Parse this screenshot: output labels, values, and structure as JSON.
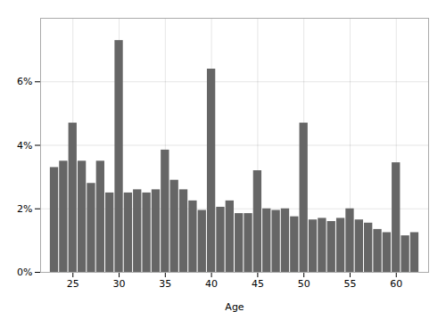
{
  "chart_data": {
    "type": "bar",
    "x": [
      23,
      24,
      25,
      26,
      27,
      28,
      29,
      30,
      31,
      32,
      33,
      34,
      35,
      36,
      37,
      38,
      39,
      40,
      41,
      42,
      43,
      44,
      45,
      46,
      47,
      48,
      49,
      50,
      51,
      52,
      53,
      54,
      55,
      56,
      57,
      58,
      59,
      60,
      61,
      62
    ],
    "values": [
      3.3,
      3.5,
      4.7,
      3.5,
      2.8,
      3.5,
      2.5,
      7.3,
      2.5,
      2.6,
      2.5,
      2.6,
      3.85,
      2.9,
      2.6,
      2.25,
      1.95,
      6.4,
      2.05,
      2.25,
      1.85,
      1.85,
      3.2,
      2.0,
      1.95,
      2.0,
      1.75,
      4.7,
      1.65,
      1.7,
      1.6,
      1.7,
      2.0,
      1.65,
      1.55,
      1.35,
      1.25,
      3.45,
      1.15,
      1.25
    ],
    "color": "#666666",
    "xlabel": "Age",
    "xlim": [
      21.5,
      63.5
    ],
    "xticks": [
      25,
      30,
      35,
      40,
      45,
      50,
      55,
      60
    ],
    "ylim": [
      0,
      8
    ],
    "yticks": [
      {
        "value": 0,
        "label": "0%"
      },
      {
        "value": 2,
        "label": "2%"
      },
      {
        "value": 4,
        "label": "4%"
      },
      {
        "value": 6,
        "label": "6%"
      }
    ],
    "grid": true
  }
}
